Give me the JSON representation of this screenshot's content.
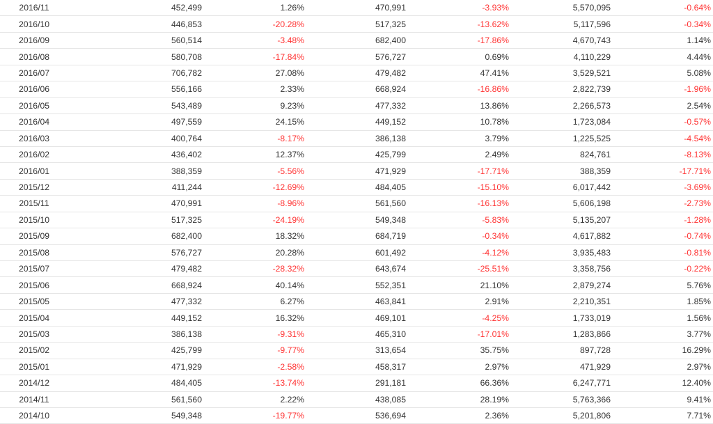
{
  "colors": {
    "negative": "#ff3333",
    "text": "#333333",
    "border": "#e6e6e6"
  },
  "rows": [
    {
      "date": "2016/11",
      "v1": "452,499",
      "p1": "1.26%",
      "v2": "470,991",
      "p2": "-3.93%",
      "v3": "5,570,095",
      "p3": "-0.64%"
    },
    {
      "date": "2016/10",
      "v1": "446,853",
      "p1": "-20.28%",
      "v2": "517,325",
      "p2": "-13.62%",
      "v3": "5,117,596",
      "p3": "-0.34%"
    },
    {
      "date": "2016/09",
      "v1": "560,514",
      "p1": "-3.48%",
      "v2": "682,400",
      "p2": "-17.86%",
      "v3": "4,670,743",
      "p3": "1.14%"
    },
    {
      "date": "2016/08",
      "v1": "580,708",
      "p1": "-17.84%",
      "v2": "576,727",
      "p2": "0.69%",
      "v3": "4,110,229",
      "p3": "4.44%"
    },
    {
      "date": "2016/07",
      "v1": "706,782",
      "p1": "27.08%",
      "v2": "479,482",
      "p2": "47.41%",
      "v3": "3,529,521",
      "p3": "5.08%"
    },
    {
      "date": "2016/06",
      "v1": "556,166",
      "p1": "2.33%",
      "v2": "668,924",
      "p2": "-16.86%",
      "v3": "2,822,739",
      "p3": "-1.96%"
    },
    {
      "date": "2016/05",
      "v1": "543,489",
      "p1": "9.23%",
      "v2": "477,332",
      "p2": "13.86%",
      "v3": "2,266,573",
      "p3": "2.54%"
    },
    {
      "date": "2016/04",
      "v1": "497,559",
      "p1": "24.15%",
      "v2": "449,152",
      "p2": "10.78%",
      "v3": "1,723,084",
      "p3": "-0.57%"
    },
    {
      "date": "2016/03",
      "v1": "400,764",
      "p1": "-8.17%",
      "v2": "386,138",
      "p2": "3.79%",
      "v3": "1,225,525",
      "p3": "-4.54%"
    },
    {
      "date": "2016/02",
      "v1": "436,402",
      "p1": "12.37%",
      "v2": "425,799",
      "p2": "2.49%",
      "v3": "824,761",
      "p3": "-8.13%"
    },
    {
      "date": "2016/01",
      "v1": "388,359",
      "p1": "-5.56%",
      "v2": "471,929",
      "p2": "-17.71%",
      "v3": "388,359",
      "p3": "-17.71%"
    },
    {
      "date": "2015/12",
      "v1": "411,244",
      "p1": "-12.69%",
      "v2": "484,405",
      "p2": "-15.10%",
      "v3": "6,017,442",
      "p3": "-3.69%"
    },
    {
      "date": "2015/11",
      "v1": "470,991",
      "p1": "-8.96%",
      "v2": "561,560",
      "p2": "-16.13%",
      "v3": "5,606,198",
      "p3": "-2.73%"
    },
    {
      "date": "2015/10",
      "v1": "517,325",
      "p1": "-24.19%",
      "v2": "549,348",
      "p2": "-5.83%",
      "v3": "5,135,207",
      "p3": "-1.28%"
    },
    {
      "date": "2015/09",
      "v1": "682,400",
      "p1": "18.32%",
      "v2": "684,719",
      "p2": "-0.34%",
      "v3": "4,617,882",
      "p3": "-0.74%"
    },
    {
      "date": "2015/08",
      "v1": "576,727",
      "p1": "20.28%",
      "v2": "601,492",
      "p2": "-4.12%",
      "v3": "3,935,483",
      "p3": "-0.81%"
    },
    {
      "date": "2015/07",
      "v1": "479,482",
      "p1": "-28.32%",
      "v2": "643,674",
      "p2": "-25.51%",
      "v3": "3,358,756",
      "p3": "-0.22%"
    },
    {
      "date": "2015/06",
      "v1": "668,924",
      "p1": "40.14%",
      "v2": "552,351",
      "p2": "21.10%",
      "v3": "2,879,274",
      "p3": "5.76%"
    },
    {
      "date": "2015/05",
      "v1": "477,332",
      "p1": "6.27%",
      "v2": "463,841",
      "p2": "2.91%",
      "v3": "2,210,351",
      "p3": "1.85%"
    },
    {
      "date": "2015/04",
      "v1": "449,152",
      "p1": "16.32%",
      "v2": "469,101",
      "p2": "-4.25%",
      "v3": "1,733,019",
      "p3": "1.56%"
    },
    {
      "date": "2015/03",
      "v1": "386,138",
      "p1": "-9.31%",
      "v2": "465,310",
      "p2": "-17.01%",
      "v3": "1,283,866",
      "p3": "3.77%"
    },
    {
      "date": "2015/02",
      "v1": "425,799",
      "p1": "-9.77%",
      "v2": "313,654",
      "p2": "35.75%",
      "v3": "897,728",
      "p3": "16.29%"
    },
    {
      "date": "2015/01",
      "v1": "471,929",
      "p1": "-2.58%",
      "v2": "458,317",
      "p2": "2.97%",
      "v3": "471,929",
      "p3": "2.97%"
    },
    {
      "date": "2014/12",
      "v1": "484,405",
      "p1": "-13.74%",
      "v2": "291,181",
      "p2": "66.36%",
      "v3": "6,247,771",
      "p3": "12.40%"
    },
    {
      "date": "2014/11",
      "v1": "561,560",
      "p1": "2.22%",
      "v2": "438,085",
      "p2": "28.19%",
      "v3": "5,763,366",
      "p3": "9.41%"
    },
    {
      "date": "2014/10",
      "v1": "549,348",
      "p1": "-19.77%",
      "v2": "536,694",
      "p2": "2.36%",
      "v3": "5,201,806",
      "p3": "7.71%"
    }
  ]
}
